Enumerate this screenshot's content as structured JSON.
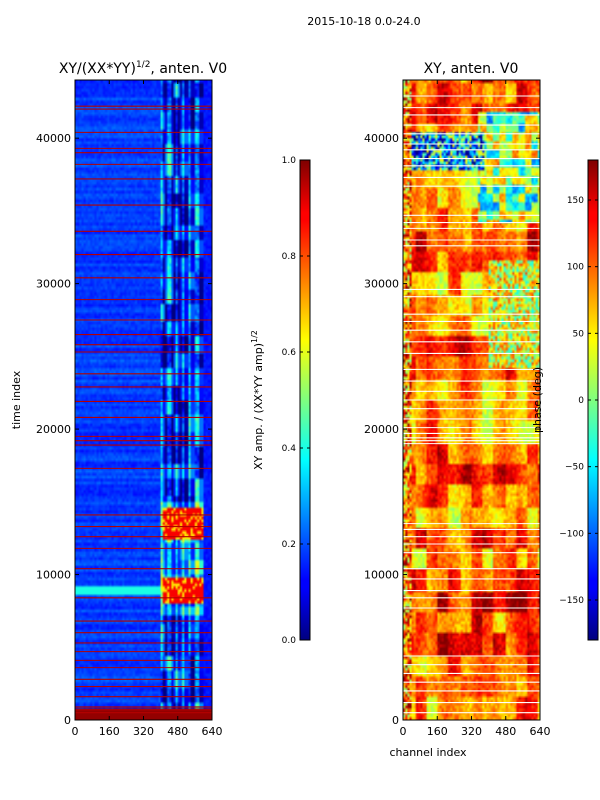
{
  "figure": {
    "suptitle": "2015-10-18 0.0-24.0"
  },
  "chart_data": [
    {
      "type": "heatmap",
      "title_main": "XY/(XX*YY)",
      "title_sup": "1/2",
      "title_rest": ", anten. V0",
      "xlabel": "",
      "ylabel": "time index",
      "xlim": [
        0,
        640
      ],
      "ylim": [
        0,
        44000
      ],
      "xticks": [
        0,
        160,
        320,
        480,
        640
      ],
      "yticks": [
        0,
        10000,
        20000,
        30000,
        40000
      ],
      "flag_rows": [
        500,
        700,
        900,
        1600,
        2300,
        2800,
        3600,
        4100,
        4700,
        5300,
        6000,
        6800,
        8400,
        10400,
        11800,
        12600,
        13300,
        14100,
        17300,
        18900,
        19200,
        19500,
        20800,
        21900,
        22900,
        23800,
        25300,
        25800,
        26500,
        27500,
        28900,
        30400,
        32000,
        33600,
        35400,
        37200,
        38200,
        39000,
        39300,
        40400,
        42000,
        42200
      ],
      "colorbar": {
        "label_main": "XY amp. / (XX*YY amp)",
        "label_sup": "1/2",
        "range": [
          0.0,
          1.0
        ],
        "ticks": [
          "0.0",
          "0.2",
          "0.4",
          "0.6",
          "0.8",
          "1.0"
        ],
        "tick_values": [
          0,
          0.2,
          0.4,
          0.6,
          0.8,
          1.0
        ]
      }
    },
    {
      "type": "heatmap",
      "title": "XY, anten. V0",
      "xlabel": "channel index",
      "ylabel": "",
      "xlim": [
        0,
        640
      ],
      "ylim": [
        0,
        44000
      ],
      "xticks": [
        0,
        160,
        320,
        480,
        640
      ],
      "yticks": [
        0,
        10000,
        20000,
        30000,
        40000
      ],
      "flag_rows": [
        500,
        1200,
        2000,
        2600,
        3200,
        3800,
        4400,
        7700,
        8400,
        8900,
        9700,
        10400,
        11500,
        12100,
        12600,
        13100,
        13500,
        19000,
        19200,
        19400,
        19700,
        20100,
        20700,
        21400,
        22000,
        22600,
        23300,
        24100,
        25200,
        26000,
        26800,
        27400,
        27900,
        29100,
        29600,
        32600,
        33000,
        33800,
        34200,
        34700,
        36700,
        37300,
        38100,
        38600,
        39200,
        39600,
        40300,
        40900,
        41600,
        42100,
        42900
      ],
      "colorbar": {
        "label": "phase (deg)",
        "range": [
          -180,
          180
        ],
        "ticks": [
          "150",
          "100",
          "50",
          "0",
          "−50",
          "−100",
          "−150"
        ],
        "tick_values": [
          150,
          100,
          50,
          0,
          -50,
          -100,
          -150
        ]
      }
    }
  ]
}
